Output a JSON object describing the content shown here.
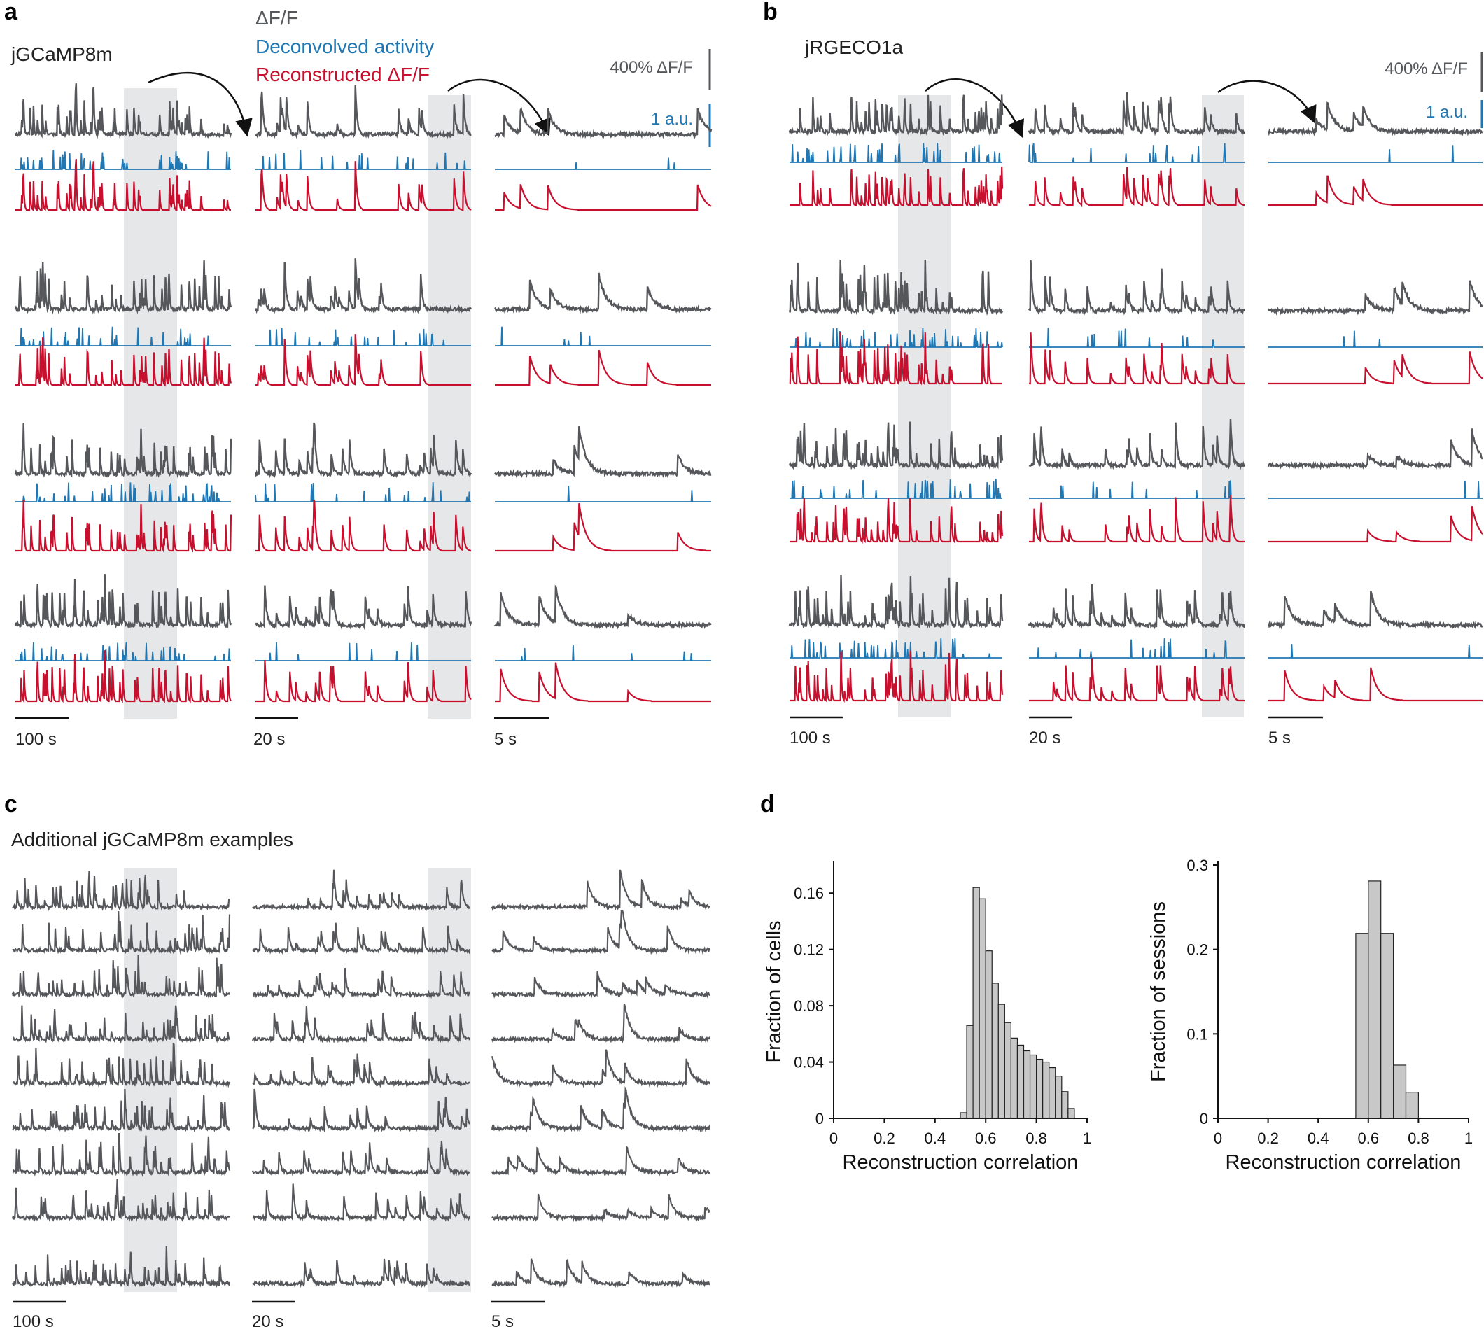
{
  "colors": {
    "dff": "#55575b",
    "deconv": "#1f77b4",
    "recon": "#c8102e",
    "shade": "#e6e7e9",
    "bar": "#c8c8c8"
  },
  "panel_a": {
    "letter": "a",
    "indicator": "jGCaMP8m",
    "legend": {
      "dff": "ΔF/F",
      "deconv": "Deconvolved activity",
      "recon": "Reconstructed ΔF/F"
    },
    "scale_dff": "400% ΔF/F",
    "scale_au": "1 a.u.",
    "time_scales": [
      "100 s",
      "20 s",
      "5 s"
    ]
  },
  "panel_b": {
    "letter": "b",
    "indicator": "jRGECO1a",
    "scale_dff": "400% ΔF/F",
    "scale_au": "1 a.u.",
    "time_scales": [
      "100 s",
      "20 s",
      "5 s"
    ]
  },
  "panel_c": {
    "letter": "c",
    "title": "Additional jGCaMP8m examples",
    "time_scales": [
      "100 s",
      "20 s",
      "5 s"
    ]
  },
  "panel_d": {
    "letter": "d"
  },
  "chart_data": [
    {
      "type": "bar",
      "panel": "d-left",
      "xlabel": "Reconstruction correlation",
      "ylabel": "Fraction of cells",
      "xlim": [
        0,
        1
      ],
      "ylim": [
        0,
        0.18
      ],
      "xticks": [
        "0",
        "0.2",
        "0.4",
        "0.6",
        "0.8",
        "1"
      ],
      "yticks": [
        "0",
        "0.04",
        "0.08",
        "0.12",
        "0.16"
      ],
      "bin_width": 0.025,
      "bin_starts": [
        0.5,
        0.525,
        0.55,
        0.575,
        0.6,
        0.625,
        0.65,
        0.675,
        0.7,
        0.725,
        0.75,
        0.775,
        0.8,
        0.825,
        0.85,
        0.875,
        0.9,
        0.925
      ],
      "values": [
        0.004,
        0.066,
        0.164,
        0.156,
        0.119,
        0.096,
        0.081,
        0.068,
        0.057,
        0.052,
        0.048,
        0.045,
        0.042,
        0.04,
        0.036,
        0.03,
        0.019,
        0.007
      ]
    },
    {
      "type": "bar",
      "panel": "d-right",
      "xlabel": "Reconstruction correlation",
      "ylabel": "Fraction of sessions",
      "xlim": [
        0,
        1
      ],
      "ylim": [
        0,
        0.3
      ],
      "xticks": [
        "0",
        "0.2",
        "0.4",
        "0.6",
        "0.8",
        "1"
      ],
      "yticks": [
        "0",
        "0.1",
        "0.2",
        "0.3"
      ],
      "bin_width": 0.05,
      "bin_starts": [
        0.55,
        0.6,
        0.65,
        0.7,
        0.75
      ],
      "values": [
        0.219,
        0.281,
        0.219,
        0.063,
        0.031
      ]
    }
  ]
}
